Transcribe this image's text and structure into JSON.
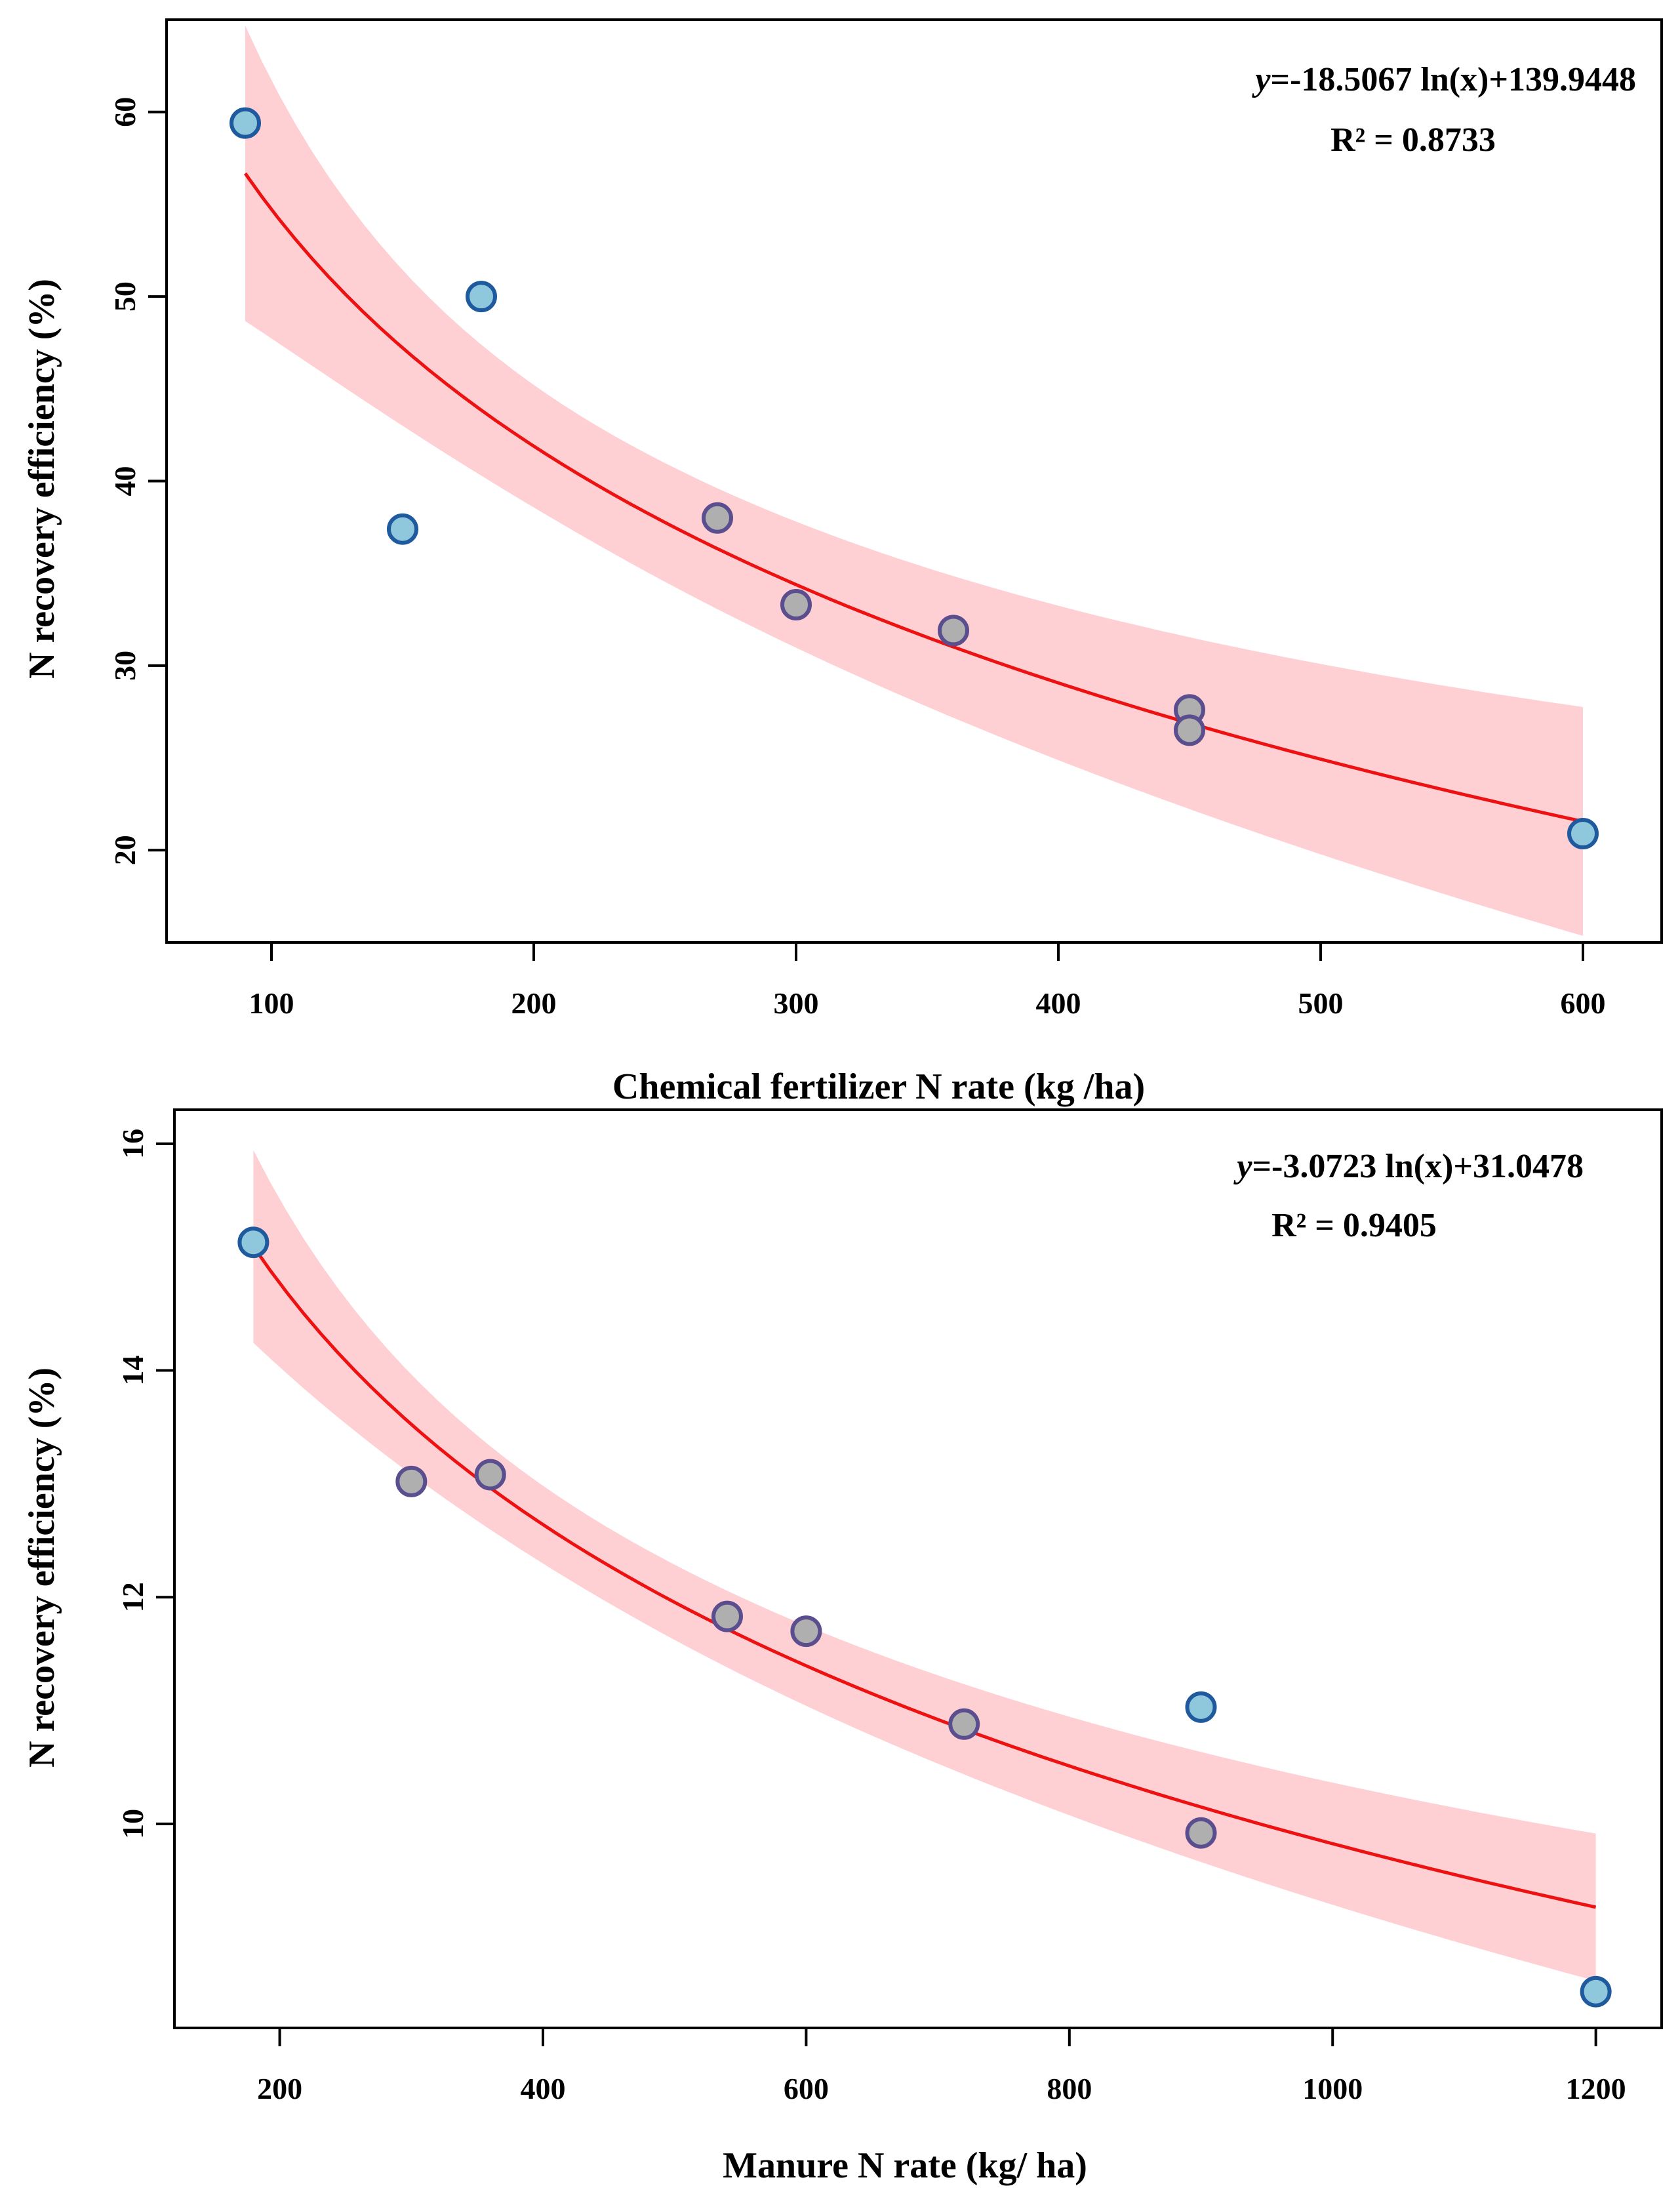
{
  "chart_data": [
    {
      "type": "scatter",
      "xlabel": "Chemical fertilizer N rate (kg /ha)",
      "ylabel": "N recovery efficiency (%)",
      "xlim": [
        60,
        630
      ],
      "ylim": [
        15,
        65
      ],
      "xticks": [
        100,
        200,
        300,
        400,
        500,
        600
      ],
      "yticks": [
        20,
        30,
        40,
        50,
        60
      ],
      "fit": {
        "type": "log",
        "a": -18.5067,
        "b": 139.9448,
        "x_range": [
          90,
          600
        ],
        "band_width_at_ends": [
          8.0,
          6.2
        ],
        "band_width_mid": 3.2
      },
      "equation_prefix": "y",
      "equation_rest": "=-18.5067 ln(x)+139.9448",
      "r2_label": "R² = 0.8733",
      "points": [
        {
          "x": 90,
          "y": 59.4,
          "fill": "#8fc8dc"
        },
        {
          "x": 150,
          "y": 37.4,
          "fill": "#8fc8dc"
        },
        {
          "x": 180,
          "y": 50.0,
          "fill": "#8fc8dc"
        },
        {
          "x": 270,
          "y": 38.0,
          "fill": "#b0afaf"
        },
        {
          "x": 300,
          "y": 33.3,
          "fill": "#b0afaf"
        },
        {
          "x": 360,
          "y": 31.9,
          "fill": "#b0afaf"
        },
        {
          "x": 450,
          "y": 27.6,
          "fill": "#b0afaf"
        },
        {
          "x": 450,
          "y": 26.5,
          "fill": "#b0afaf"
        },
        {
          "x": 600,
          "y": 20.9,
          "fill": "#8fc8dc"
        }
      ]
    },
    {
      "type": "scatter",
      "xlabel": "Manure N rate (kg/ ha)",
      "ylabel": "N recovery efficiency (%)",
      "xlim": [
        120,
        1250
      ],
      "ylim": [
        8.2,
        16.3
      ],
      "xticks": [
        200,
        400,
        600,
        800,
        1000,
        1200
      ],
      "yticks": [
        10,
        12,
        14,
        16
      ],
      "fit": {
        "type": "log",
        "a": -3.0723,
        "b": 31.0478,
        "x_range": [
          180,
          1200
        ],
        "band_width_at_ends": [
          0.85,
          0.65
        ],
        "band_width_mid": 0.33
      },
      "equation_prefix": "y",
      "equation_rest": "=-3.0723 ln(x)+31.0478",
      "r2_label": "R² = 0.9405",
      "points": [
        {
          "x": 180,
          "y": 15.13,
          "fill": "#8fc8dc"
        },
        {
          "x": 300,
          "y": 13.02,
          "fill": "#b0afaf"
        },
        {
          "x": 360,
          "y": 13.08,
          "fill": "#b0afaf"
        },
        {
          "x": 540,
          "y": 11.83,
          "fill": "#b0afaf"
        },
        {
          "x": 600,
          "y": 11.7,
          "fill": "#b0afaf"
        },
        {
          "x": 720,
          "y": 10.88,
          "fill": "#b0afaf"
        },
        {
          "x": 900,
          "y": 11.03,
          "fill": "#8fc8dc"
        },
        {
          "x": 900,
          "y": 9.92,
          "fill": "#b0afaf"
        },
        {
          "x": 1200,
          "y": 8.52,
          "fill": "#8fc8dc"
        }
      ]
    }
  ],
  "colors": {
    "fit_line": "#ee1111",
    "confidence_band": "#ffd0d3",
    "marker_stroke_blue": "#1f5a9e",
    "marker_stroke_purple": "#5b4e8e"
  }
}
